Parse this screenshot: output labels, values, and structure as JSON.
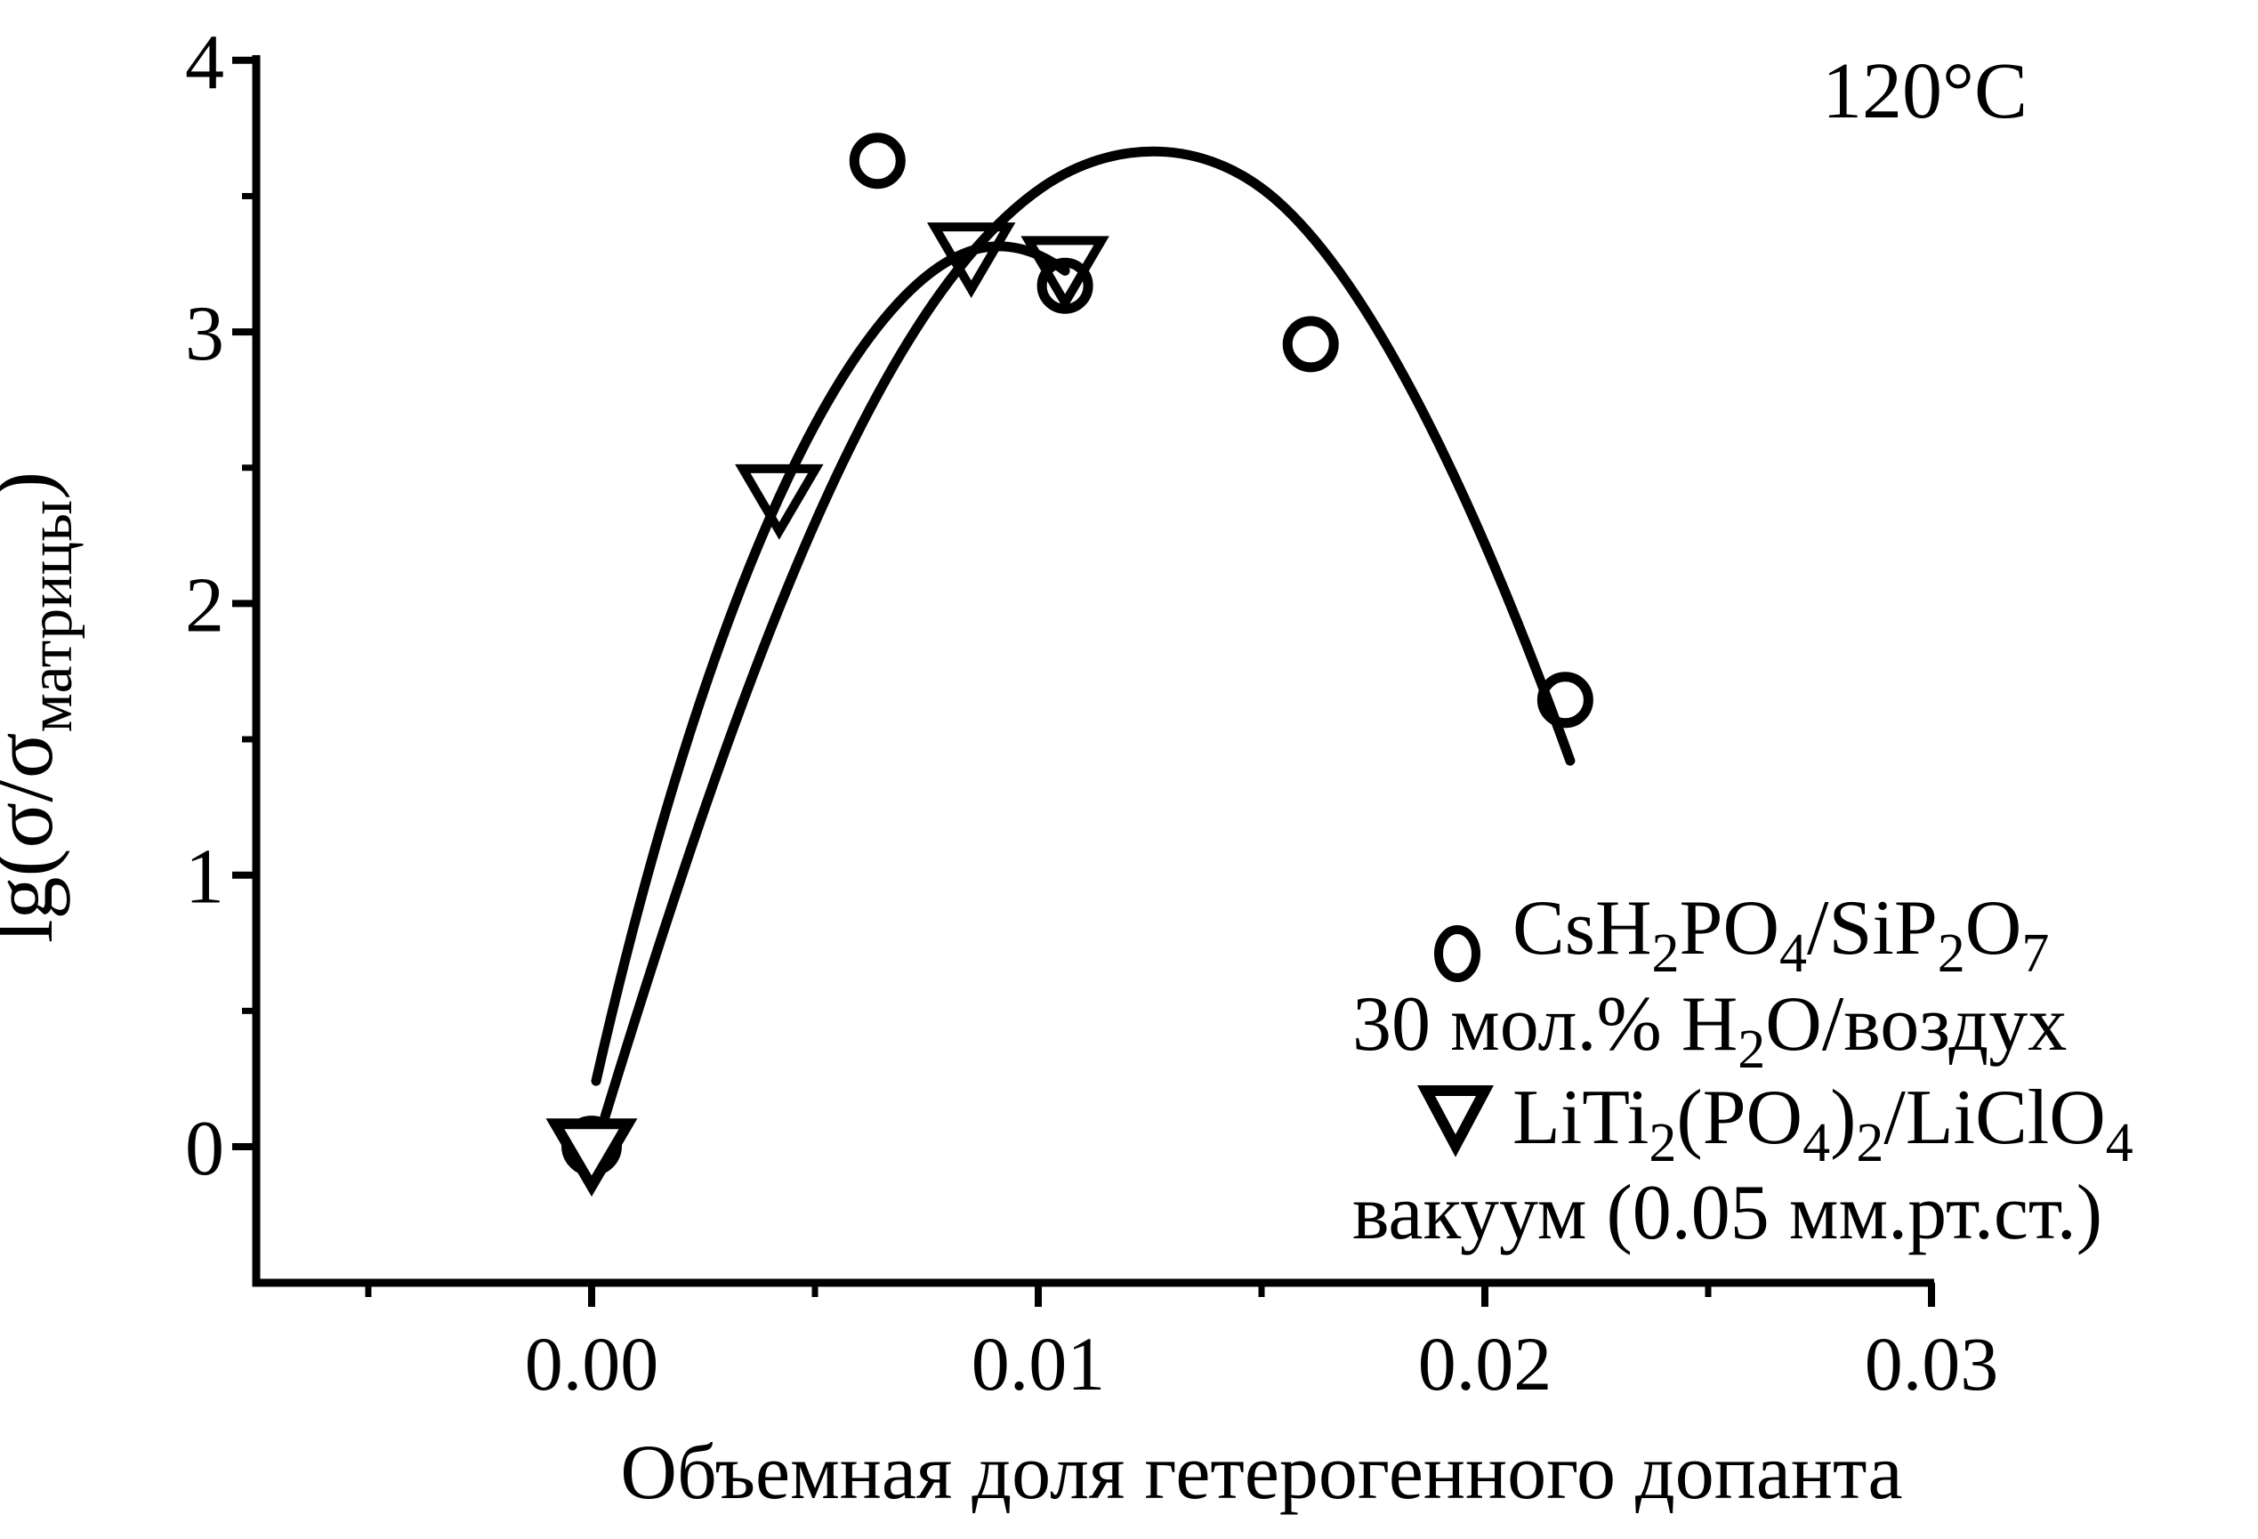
{
  "chart_data": {
    "type": "scatter",
    "annotation": "120°C",
    "xlabel": "Объемная доля гетерогенного допанта",
    "ylabel_parts": [
      {
        "t": "lg(σ/σ"
      },
      {
        "t": "матрицы",
        "s": true
      },
      {
        "t": ")"
      }
    ],
    "xlim": [
      -0.0075,
      0.03
    ],
    "ylim": [
      -0.5,
      4.0
    ],
    "grid": false,
    "legend_position": "right-middle",
    "x_ticks": [
      {
        "v": 0.0,
        "label": "0.00"
      },
      {
        "v": 0.01,
        "label": "0.01"
      },
      {
        "v": 0.02,
        "label": "0.02"
      },
      {
        "v": 0.03,
        "label": "0.03"
      }
    ],
    "x_minor_ticks": [
      -0.005,
      0.005,
      0.015,
      0.025
    ],
    "y_ticks": [
      {
        "v": 0,
        "label": "0"
      },
      {
        "v": 1,
        "label": "1"
      },
      {
        "v": 2,
        "label": "2"
      },
      {
        "v": 3,
        "label": "3"
      },
      {
        "v": 4,
        "label": "4"
      }
    ],
    "y_minor_ticks": [
      0.5,
      1.5,
      2.5,
      3.5
    ],
    "series": [
      {
        "id": "cshpo4",
        "marker": "circle",
        "name_parts": [
          {
            "t": "CsH"
          },
          {
            "t": "2",
            "s": true
          },
          {
            "t": "PO"
          },
          {
            "t": "4",
            "s": true
          },
          {
            "t": "/SiP"
          },
          {
            "t": "2",
            "s": true
          },
          {
            "t": "O"
          },
          {
            "t": "7",
            "s": true
          }
        ],
        "condition_parts": [
          {
            "t": "30 мол.% H"
          },
          {
            "t": "2",
            "s": true
          },
          {
            "t": "O/воздух"
          }
        ],
        "points": [
          [
            0.0,
            0.003,
            "filled"
          ],
          [
            0.0064,
            3.63
          ],
          [
            0.0106,
            3.17
          ],
          [
            0.0161,
            2.955
          ],
          [
            0.0218,
            1.645
          ]
        ]
      },
      {
        "id": "liti2po4",
        "marker": "triangle-down",
        "name_parts": [
          {
            "t": "LiTi"
          },
          {
            "t": "2",
            "s": true
          },
          {
            "t": "(PO"
          },
          {
            "t": "4",
            "s": true
          },
          {
            "t": ")"
          },
          {
            "t": "2",
            "s": true
          },
          {
            "t": "/LiClO"
          },
          {
            "t": "4",
            "s": true
          }
        ],
        "condition_parts": [
          {
            "t": "вакуум (0.05 мм.рт.ст.)"
          }
        ],
        "points": [
          [
            0.0,
            -0.027,
            "filled"
          ],
          [
            0.0042,
            2.385
          ],
          [
            0.0085,
            3.275
          ],
          [
            0.0106,
            3.225
          ]
        ]
      }
    ],
    "fit_curves": [
      {
        "series": "cshpo4",
        "start": [
          0.0003,
          0.111
        ],
        "cubics": [
          [
            [
              0.00369,
              1.929
            ],
            [
              0.00667,
              3.174
            ],
            [
              0.01026,
              3.551
            ]
          ],
          [
            [
              0.01185,
              3.714
            ],
            [
              0.01384,
              3.714
            ],
            [
              0.01544,
              3.469
            ]
          ],
          [
            [
              0.01783,
              3.108
            ],
            [
              0.02022,
              2.191
            ],
            [
              0.02191,
              1.421
            ]
          ]
        ]
      },
      {
        "series": "liti2po4",
        "start": [
          0.0001,
          0.242
        ],
        "cubics": [
          [
            [
              0.00189,
              1.536
            ],
            [
              0.00428,
              2.65
            ],
            [
              0.00687,
              3.108
            ]
          ],
          [
            [
              0.00807,
              3.321
            ],
            [
              0.00926,
              3.387
            ],
            [
              0.0106,
              3.225
            ]
          ]
        ]
      }
    ],
    "colors": {
      "foreground": "#000000",
      "background": "#ffffff"
    }
  }
}
